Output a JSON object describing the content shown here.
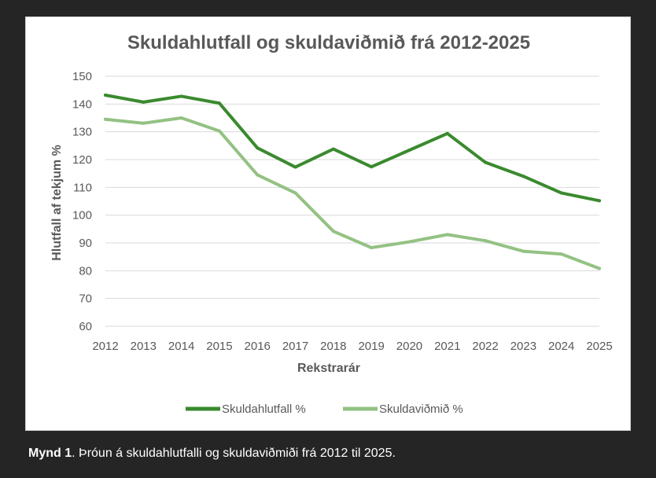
{
  "chart_data": {
    "type": "line",
    "title": "Skuldahlutfall og skuldaviðmið frá 2012-2025",
    "xlabel": "Rekstrarár",
    "ylabel": "Hlutfall af tekjum %",
    "ylim": [
      60,
      150
    ],
    "yticks": [
      "60",
      "70",
      "80",
      "90",
      "100",
      "110",
      "120",
      "130",
      "140",
      "150"
    ],
    "categories": [
      "2012",
      "2013",
      "2014",
      "2015",
      "2016",
      "2017",
      "2018",
      "2019",
      "2020",
      "2021",
      "2022",
      "2023",
      "2024",
      "2025"
    ],
    "grid": true,
    "legend_position": "bottom",
    "series": [
      {
        "name": "Skuldahlutfall %",
        "color": "#3a8a2e",
        "values": [
          143.2,
          140.7,
          142.8,
          140.3,
          124.2,
          117.3,
          123.8,
          117.4,
          123.4,
          129.4,
          119.0,
          114.0,
          108.0,
          105.2
        ]
      },
      {
        "name": "Skuldaviðmið %",
        "color": "#93c283",
        "values": [
          134.5,
          133.1,
          135.0,
          130.3,
          114.5,
          108.0,
          94.2,
          88.3,
          90.4,
          93.0,
          90.8,
          87.0,
          86.0,
          80.8
        ]
      }
    ]
  },
  "caption": {
    "label": "Mynd 1",
    "text": ". Þróun á skuldahlutfalli og skuldaviðmiði frá 2012 til 2025."
  }
}
